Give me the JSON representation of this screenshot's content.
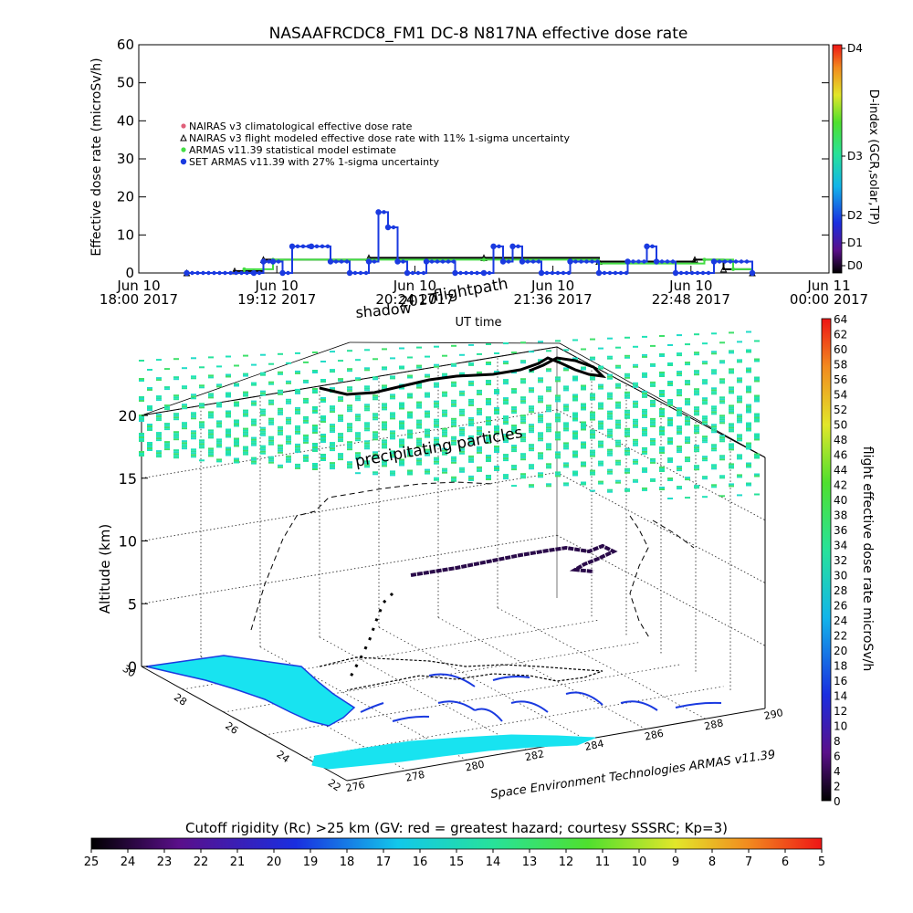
{
  "title": "NASAAFRCDC8_FM1 DC-8    N817NA effective dose rate",
  "top_chart": {
    "ylabel": "Effective dose rate (microSv/h)",
    "xlabel": "UT time",
    "yticks": [
      "0",
      "10",
      "20",
      "30",
      "40",
      "50",
      "60"
    ],
    "xticks": [
      {
        "line1": "Jun 10",
        "line2": "18:00 2017"
      },
      {
        "line1": "Jun 10",
        "line2": "19:12 2017"
      },
      {
        "line1": "Jun 10",
        "line2": "20:24 2017"
      },
      {
        "line1": "Jun 10",
        "line2": "21:36 2017"
      },
      {
        "line1": "Jun 10",
        "line2": "22:48 2017"
      },
      {
        "line1": "Jun 11",
        "line2": "00:00 2017"
      }
    ],
    "legend": [
      {
        "text": "NAIRAS v3 climatological effective dose rate",
        "color": "#e0607a",
        "symbol": "asterisk"
      },
      {
        "text": "NAIRAS v3 flight modeled effective dose rate with 11% 1-sigma uncertainty",
        "color": "#000000",
        "symbol": "triangle"
      },
      {
        "text": "ARMAS v11.39 statistical model estimate",
        "color": "#44dd44",
        "symbol": "asterisk"
      },
      {
        "text": "SET ARMAS v11.39 with 27% 1-sigma uncertainty",
        "color": "#1a3ae0",
        "symbol": "dot"
      }
    ],
    "right_axis_label": "D-index (GCR,solar,TP)",
    "dindex_ticks": [
      "D4",
      "D3",
      "D2",
      "D1",
      "D0"
    ]
  },
  "chart_data": {
    "type": "line",
    "title": "NASAAFRCDC8_FM1 DC-8    N817NA effective dose rate",
    "xlabel": "UT time",
    "ylabel": "Effective dose rate (microSv/h)",
    "ylim": [
      0,
      60
    ],
    "x_range": [
      "2017-06-10 18:00",
      "2017-06-11 00:00"
    ],
    "series": [
      {
        "name": "SET ARMAS v11.39 with 27% 1-sigma uncertainty",
        "x": [
          "18:25",
          "19:00",
          "19:05",
          "19:10",
          "19:15",
          "19:20",
          "19:30",
          "19:40",
          "19:50",
          "20:00",
          "20:05",
          "20:10",
          "20:15",
          "20:20",
          "20:30",
          "20:45",
          "21:00",
          "21:05",
          "21:10",
          "21:15",
          "21:20",
          "21:30",
          "21:45",
          "22:00",
          "22:15",
          "22:25",
          "22:30",
          "22:40",
          "23:00",
          "23:20"
        ],
        "values": [
          0,
          0,
          3,
          3,
          0,
          7,
          7,
          3,
          0,
          3,
          16,
          12,
          3,
          0,
          3,
          0,
          0,
          7,
          3,
          7,
          3,
          0,
          3,
          0,
          3,
          7,
          3,
          0,
          3,
          0
        ]
      },
      {
        "name": "ARMAS v11.39 statistical model estimate",
        "x": [
          "18:25",
          "18:55",
          "19:10",
          "20:00",
          "21:00",
          "22:00",
          "22:55",
          "23:10",
          "23:20"
        ],
        "values": [
          0,
          1,
          3.5,
          3.5,
          3.5,
          2.5,
          3.5,
          1,
          0
        ]
      },
      {
        "name": "NAIRAS v3 flight modeled effective dose rate with 11% 1-sigma uncertainty",
        "x": [
          "18:25",
          "18:50",
          "19:05",
          "20:00",
          "21:00",
          "22:00",
          "22:50",
          "23:05",
          "23:20"
        ],
        "values": [
          0,
          0.5,
          3.5,
          4,
          4,
          3,
          3.5,
          1,
          0
        ]
      }
    ]
  },
  "scene": {
    "label_shadow": "shadow",
    "label_date": "2017",
    "label_flightpath": "flightpath",
    "label_precip": "precipitating particles",
    "zlabel": "Altitude (km)",
    "zticks": [
      "0",
      "5",
      "10",
      "15",
      "20"
    ],
    "lat_ticks": [
      "30",
      "28",
      "26",
      "24",
      "22"
    ],
    "lon_ticks": [
      "276",
      "278",
      "280",
      "282",
      "284",
      "286",
      "288",
      "290"
    ],
    "credit": "Space Environment Technologies ARMAS v11.39",
    "colorbar_label": "flight effective dose rate microSv/h",
    "colorbar_ticks": [
      "0",
      "2",
      "4",
      "6",
      "8",
      "10",
      "12",
      "14",
      "16",
      "18",
      "20",
      "22",
      "24",
      "26",
      "28",
      "30",
      "32",
      "34",
      "36",
      "38",
      "40",
      "42",
      "44",
      "46",
      "48",
      "50",
      "52",
      "54",
      "56",
      "58",
      "60",
      "62",
      "64"
    ]
  },
  "bottom_bar": {
    "title": "Cutoff rigidity (Rc) >25 km (GV: red = greatest hazard; courtesy SSSRC; Kp=3)",
    "ticks": [
      "25",
      "24",
      "23",
      "22",
      "21",
      "20",
      "19",
      "18",
      "17",
      "16",
      "15",
      "14",
      "13",
      "12",
      "11",
      "10",
      "9",
      "8",
      "7",
      "6",
      "5"
    ]
  }
}
